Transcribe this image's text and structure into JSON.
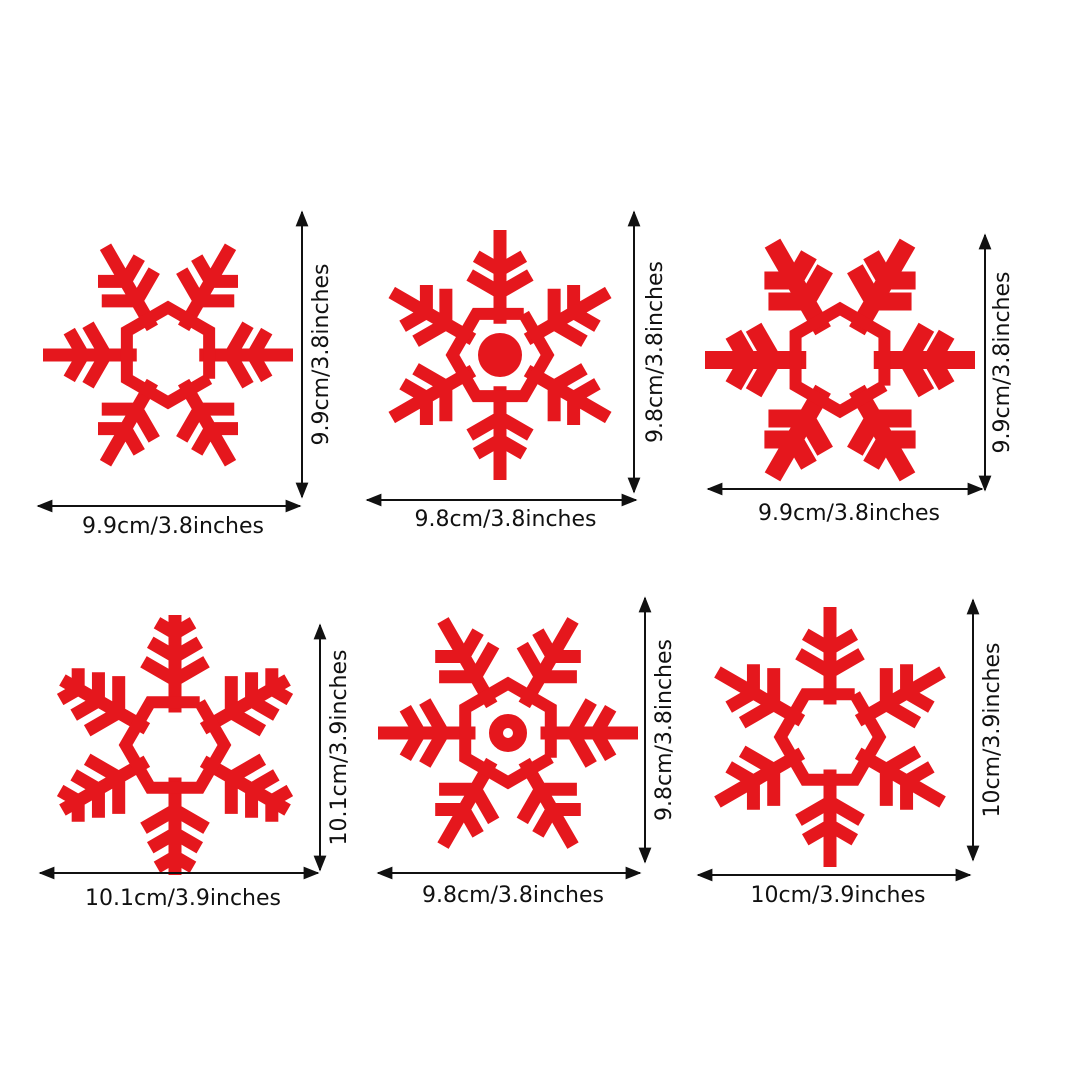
{
  "items": [
    {
      "width": "9.9cm/3.8inches",
      "height": "9.9cm/3.8inches"
    },
    {
      "width": "9.8cm/3.8inches",
      "height": "9.8cm/3.8inches"
    },
    {
      "width": "9.9cm/3.8inches",
      "height": "9.9cm/3.8inches"
    },
    {
      "width": "10.1cm/3.9inches",
      "height": "10.1cm/3.9inches"
    },
    {
      "width": "9.8cm/3.8inches",
      "height": "9.8cm/3.8inches"
    },
    {
      "width": "10cm/3.9inches",
      "height": "10cm/3.9inches"
    }
  ]
}
